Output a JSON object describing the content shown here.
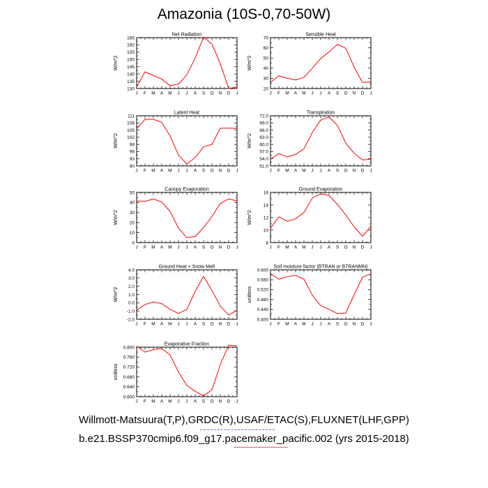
{
  "page": {
    "title": "Amazonia (10S-0,70-50W)",
    "caption_line1": "Willmott-Matsuura(T,P),GRDC(R),USAF/ETAC(S),FLUXNET(LHF,GPP)",
    "caption_line2": "b.e21.BSSP370cmip6.f09_g17.pacemaker_pacific.002 (yrs 2015-2018)"
  },
  "colors": {
    "line": "#ff0000",
    "axis": "#000000",
    "underline_blue": "#6666cc",
    "underline_red": "#e05a6a"
  },
  "chart_data": [
    {
      "type": "line",
      "title": "Net Radiation",
      "ylabel": "W/m^2",
      "categories": [
        "J",
        "F",
        "M",
        "A",
        "M",
        "J",
        "J",
        "A",
        "S",
        "O",
        "N",
        "D",
        "J"
      ],
      "ylim": [
        130,
        165
      ],
      "yticks": [
        130,
        135,
        140,
        145,
        150,
        155,
        160,
        165
      ],
      "ytick_labels": [
        "130",
        "135",
        "140",
        "145",
        "150",
        "155",
        "160",
        "165"
      ],
      "values": [
        131,
        141.5,
        139,
        136.5,
        132,
        133,
        139.5,
        151,
        165.5,
        160.5,
        147,
        130,
        131
      ]
    },
    {
      "type": "line",
      "title": "Sensible Heat",
      "ylabel": "W/m^2",
      "categories": [
        "J",
        "F",
        "M",
        "A",
        "M",
        "J",
        "J",
        "A",
        "S",
        "O",
        "N",
        "D",
        "J"
      ],
      "ylim": [
        20,
        70
      ],
      "yticks": [
        20,
        30,
        40,
        50,
        60,
        70
      ],
      "ytick_labels": [
        "20",
        "30",
        "40",
        "50",
        "60",
        "70"
      ],
      "values": [
        26,
        32.5,
        30,
        28.5,
        31,
        40,
        49.5,
        56,
        63.5,
        59.5,
        41,
        26,
        26.5
      ]
    },
    {
      "type": "line",
      "title": "Latent Heat",
      "ylabel": "W/m^2",
      "categories": [
        "J",
        "F",
        "M",
        "A",
        "M",
        "J",
        "J",
        "A",
        "S",
        "O",
        "N",
        "D",
        "J"
      ],
      "ylim": [
        90,
        111
      ],
      "yticks": [
        90,
        93,
        96,
        99,
        102,
        105,
        108,
        111
      ],
      "ytick_labels": [
        "90",
        "93",
        "96",
        "99",
        "102",
        "105",
        "108",
        "111"
      ],
      "values": [
        105.5,
        109.5,
        109.5,
        108.2,
        102.5,
        94.5,
        90.8,
        93.5,
        98,
        99,
        105.8,
        105.8,
        105.7
      ]
    },
    {
      "type": "line",
      "title": "Transpiration",
      "ylabel": "W/m^2",
      "categories": [
        "J",
        "F",
        "M",
        "A",
        "M",
        "J",
        "J",
        "A",
        "S",
        "O",
        "N",
        "D",
        "J"
      ],
      "ylim": [
        51,
        72
      ],
      "yticks": [
        51,
        54,
        57,
        60,
        63,
        66,
        69,
        72
      ],
      "ytick_labels": [
        "51.0",
        "54.0",
        "57.0",
        "60.0",
        "63.0",
        "66.0",
        "69.0",
        "72.0"
      ],
      "values": [
        53.8,
        56.2,
        54.8,
        55.8,
        58.2,
        65,
        70.2,
        71.5,
        68,
        60.5,
        56.3,
        53.5,
        53.8
      ]
    },
    {
      "type": "line",
      "title": "Canopy Evaporation",
      "ylabel": "W/m^2",
      "categories": [
        "J",
        "F",
        "M",
        "A",
        "M",
        "J",
        "J",
        "A",
        "S",
        "O",
        "N",
        "D",
        "J"
      ],
      "ylim": [
        0,
        50
      ],
      "yticks": [
        0,
        10,
        20,
        30,
        40,
        50
      ],
      "ytick_labels": [
        "0",
        "10",
        "20",
        "30",
        "40",
        "50"
      ],
      "values": [
        41.5,
        41,
        43.5,
        40.5,
        31,
        14.5,
        5,
        6,
        15,
        26,
        39,
        43.5,
        41.5
      ]
    },
    {
      "type": "line",
      "title": "Ground Evaporation",
      "ylabel": "W/m^2",
      "categories": [
        "J",
        "F",
        "M",
        "A",
        "M",
        "J",
        "J",
        "A",
        "S",
        "O",
        "N",
        "D",
        "J"
      ],
      "ylim": [
        8,
        16
      ],
      "yticks": [
        8,
        10,
        12,
        14,
        16
      ],
      "ytick_labels": [
        "8",
        "10",
        "12",
        "14",
        "16"
      ],
      "values": [
        10.3,
        12.1,
        11.4,
        11.8,
        12.8,
        15.1,
        15.8,
        15.5,
        14.1,
        12.4,
        10.5,
        9.0,
        10.6
      ]
    },
    {
      "type": "line",
      "title": "Ground Heat + Snow Melt",
      "ylabel": "W/m^2",
      "categories": [
        "J",
        "F",
        "M",
        "A",
        "M",
        "J",
        "J",
        "A",
        "S",
        "O",
        "N",
        "D",
        "J"
      ],
      "ylim": [
        -2,
        4
      ],
      "yticks": [
        -2,
        -1,
        0,
        1,
        2,
        3,
        4
      ],
      "ytick_labels": [
        "-2.0",
        "-1.0",
        "0.0",
        "1.0",
        "2.0",
        "3.0",
        "4.0"
      ],
      "values": [
        -0.9,
        -0.2,
        0.1,
        -0.1,
        -0.8,
        -1.3,
        -0.8,
        1.4,
        3.2,
        1.5,
        -0.4,
        -1.5,
        -0.9
      ]
    },
    {
      "type": "line",
      "title": "Soil moisture factor (BTRAN or BTRANMN)",
      "ylabel": "unitless",
      "categories": [
        "J",
        "F",
        "M",
        "A",
        "M",
        "J",
        "J",
        "A",
        "S",
        "O",
        "N",
        "D",
        "J"
      ],
      "ylim": [
        0.4,
        0.6
      ],
      "yticks": [
        0.4,
        0.44,
        0.48,
        0.52,
        0.56,
        0.6
      ],
      "ytick_labels": [
        "0.400",
        "0.440",
        "0.480",
        "0.520",
        "0.560",
        "0.600"
      ],
      "values": [
        0.585,
        0.562,
        0.572,
        0.578,
        0.562,
        0.497,
        0.455,
        0.44,
        0.423,
        0.425,
        0.5,
        0.57,
        0.584
      ]
    },
    {
      "type": "line",
      "title": "Evaporative Fraction",
      "ylabel": "unitless",
      "categories": [
        "J",
        "F",
        "M",
        "A",
        "M",
        "J",
        "J",
        "A",
        "S",
        "O",
        "N",
        "D",
        "J"
      ],
      "ylim": [
        0.6,
        0.8
      ],
      "yticks": [
        0.6,
        0.64,
        0.68,
        0.72,
        0.76,
        0.8
      ],
      "ytick_labels": [
        "0.600",
        "0.640",
        "0.680",
        "0.720",
        "0.760",
        "0.800"
      ],
      "values": [
        0.805,
        0.78,
        0.79,
        0.795,
        0.768,
        0.7,
        0.645,
        0.622,
        0.603,
        0.628,
        0.73,
        0.808,
        0.805
      ]
    }
  ]
}
